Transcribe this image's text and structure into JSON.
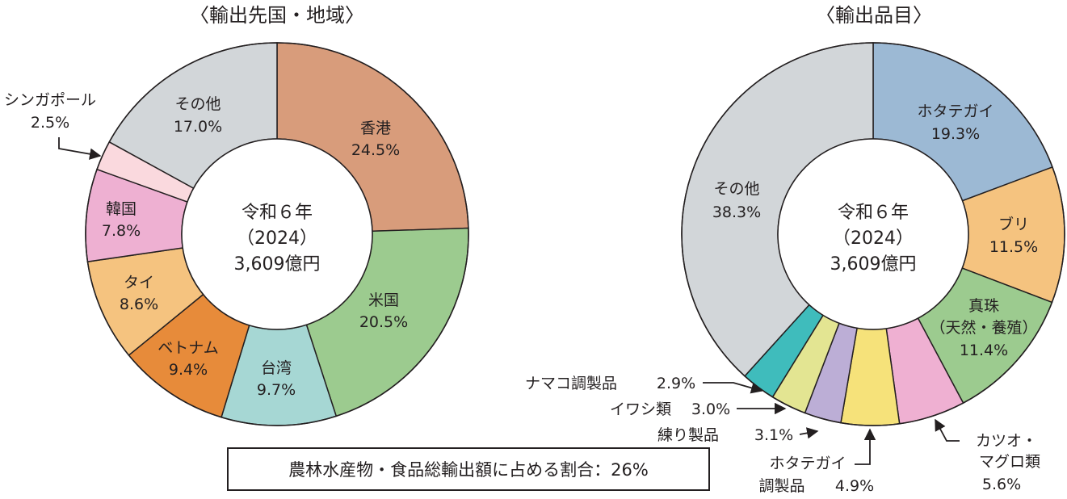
{
  "footnote": "農林水産物・食品総輸出額に占める割合：26%",
  "chart_data": [
    {
      "type": "pie",
      "title": "〈輸出先国・地域〉",
      "center_text": [
        "令和６年",
        "（2024）",
        "3,609億円"
      ],
      "slices": [
        {
          "label": "香港",
          "value": 24.5,
          "value_text": "24.5%",
          "color": "#d89c7b"
        },
        {
          "label": "米国",
          "value": 20.5,
          "value_text": "20.5%",
          "color": "#9ccb8f"
        },
        {
          "label": "台湾",
          "value": 9.7,
          "value_text": "9.7%",
          "color": "#a6d7d4"
        },
        {
          "label": "ベトナム",
          "value": 9.4,
          "value_text": "9.4%",
          "color": "#e78b3a"
        },
        {
          "label": "タイ",
          "value": 8.6,
          "value_text": "8.6%",
          "color": "#f5c37f"
        },
        {
          "label": "韓国",
          "value": 7.8,
          "value_text": "7.8%",
          "color": "#eeb0d2"
        },
        {
          "label": "シンガポール",
          "value": 2.5,
          "value_text": "2.5%",
          "color": "#fad9de"
        },
        {
          "label": "その他",
          "value": 17.0,
          "value_text": "17.0%",
          "color": "#d2d6d9"
        }
      ]
    },
    {
      "type": "pie",
      "title": "〈輸出品目〉",
      "center_text": [
        "令和６年",
        "（2024）",
        "3,609億円"
      ],
      "slices": [
        {
          "label": "ホタテガイ",
          "value": 19.3,
          "value_text": "19.3%",
          "color": "#9cb9d4"
        },
        {
          "label": "ブリ",
          "value": 11.5,
          "value_text": "11.5%",
          "color": "#f5c37f"
        },
        {
          "label": "真珠（天然・養殖）",
          "value": 11.4,
          "value_text": "11.4%",
          "color": "#9ccb8f"
        },
        {
          "label": "カツオ・マグロ類",
          "value": 5.6,
          "value_text": "5.6%",
          "color": "#efb0d2"
        },
        {
          "label": "ホタテガイ調製品",
          "value": 4.9,
          "value_text": "4.9%",
          "color": "#f6e27a"
        },
        {
          "label": "練り製品",
          "value": 3.1,
          "value_text": "3.1%",
          "color": "#bcaed6"
        },
        {
          "label": "イワシ類",
          "value": 3.0,
          "value_text": "3.0%",
          "color": "#e3e592"
        },
        {
          "label": "ナマコ調製品",
          "value": 2.9,
          "value_text": "2.9%",
          "color": "#3fbcbc"
        },
        {
          "label": "その他",
          "value": 38.3,
          "value_text": "38.3%",
          "color": "#d2d6d9"
        }
      ]
    }
  ]
}
